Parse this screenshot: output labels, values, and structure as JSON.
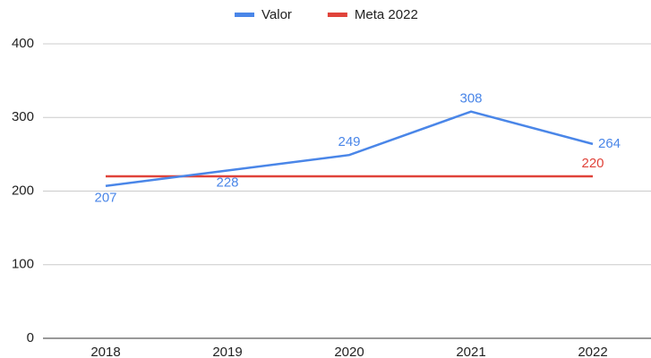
{
  "chart_data": {
    "type": "line",
    "categories": [
      "2018",
      "2019",
      "2020",
      "2021",
      "2022"
    ],
    "series": [
      {
        "name": "Valor",
        "color": "#4a86e8",
        "values": [
          207,
          228,
          249,
          308,
          264
        ],
        "data_labels": "all"
      },
      {
        "name": "Meta 2022",
        "color": "#e0433a",
        "values": [
          220,
          220,
          220,
          220,
          220
        ],
        "data_labels": "last"
      }
    ],
    "ylim": [
      0,
      400
    ],
    "yticks": [
      0,
      100,
      200,
      300,
      400
    ],
    "grid": true,
    "legend": "top"
  }
}
